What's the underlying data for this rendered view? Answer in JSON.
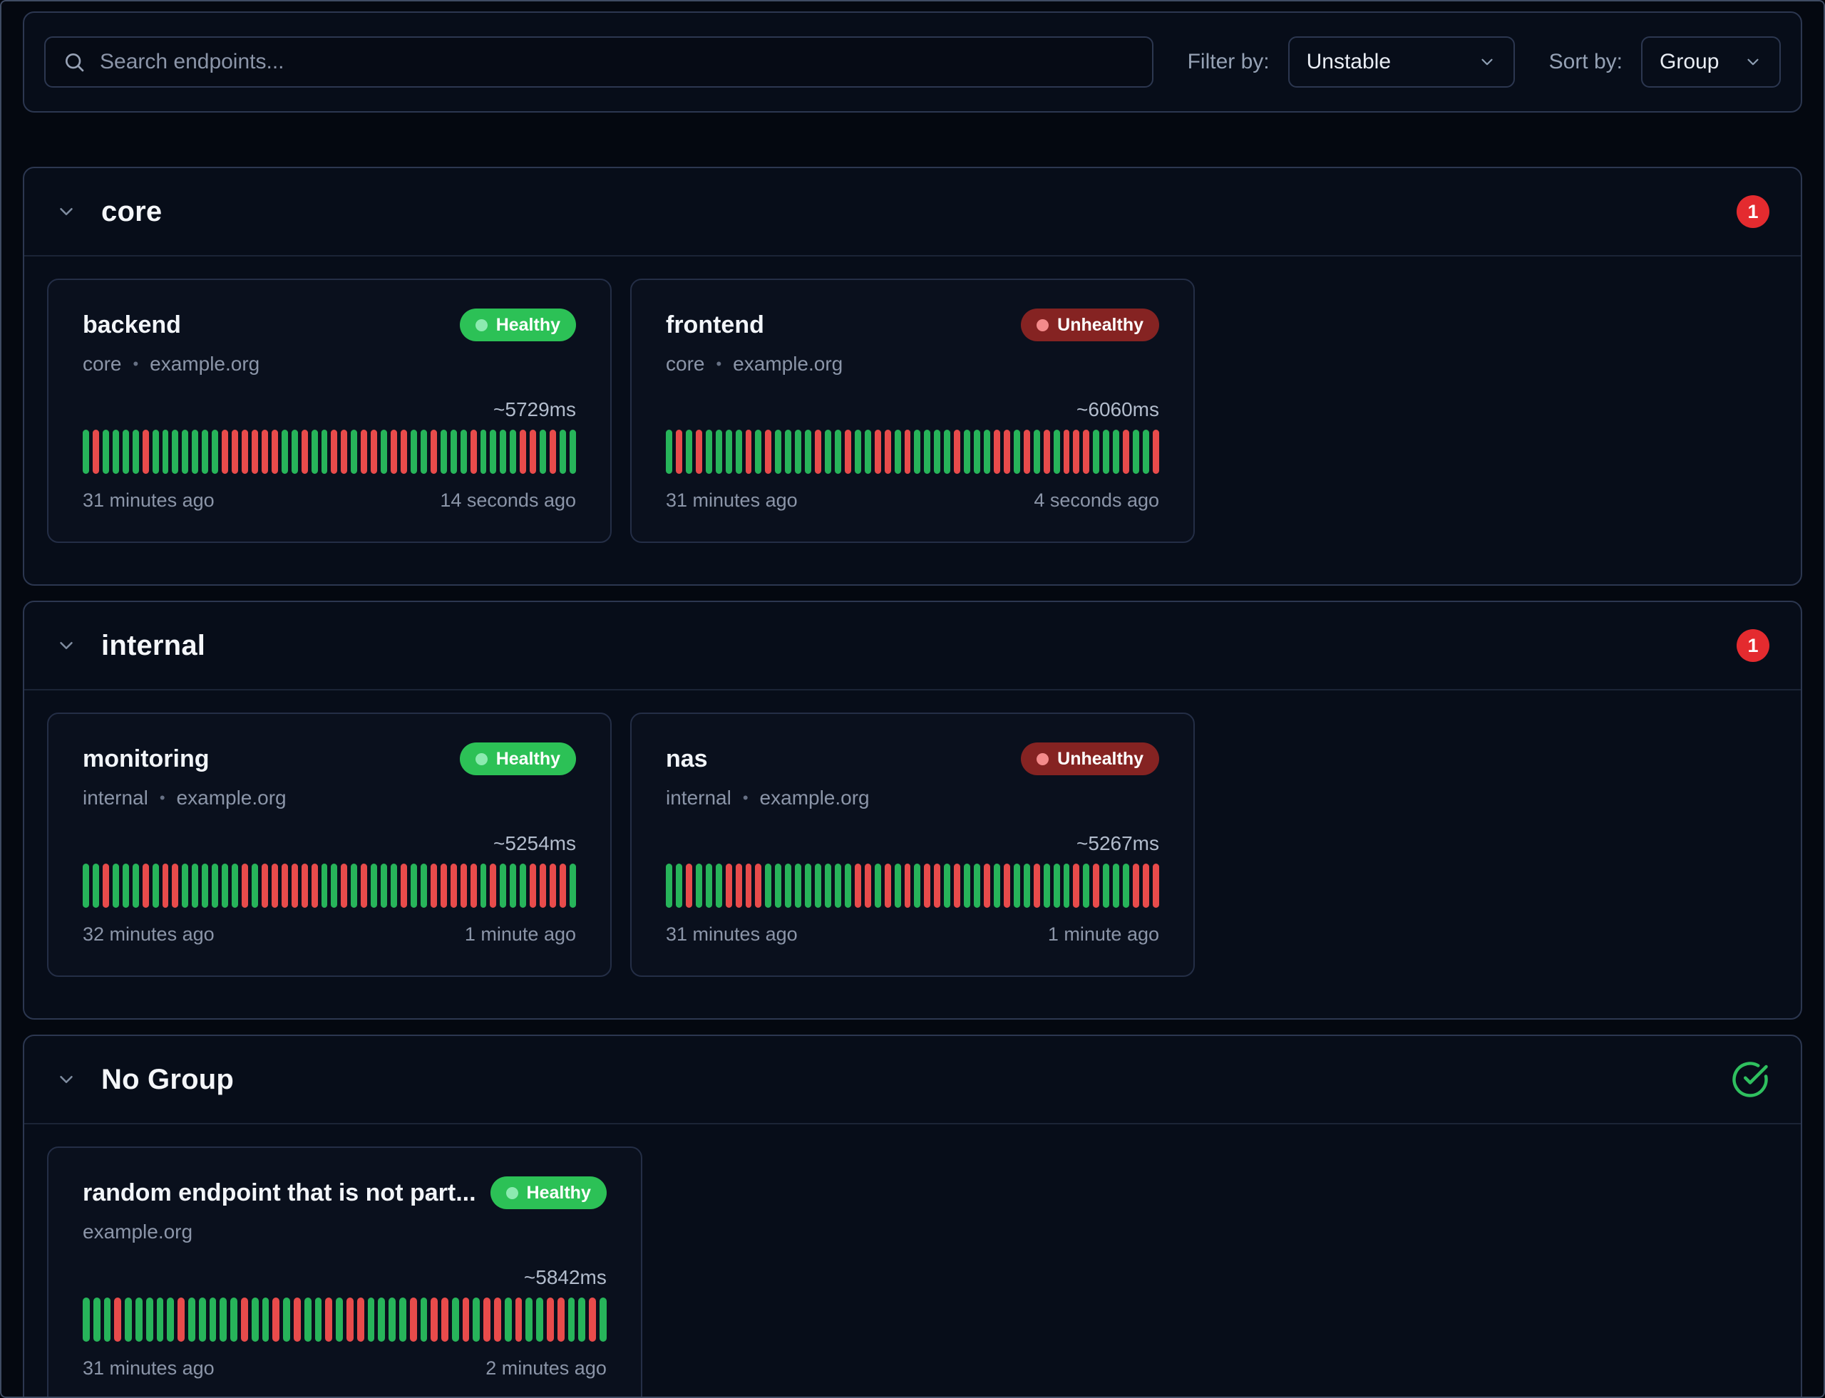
{
  "toolbar": {
    "search_placeholder": "Search endpoints...",
    "filter_label": "Filter by:",
    "filter_value": "Unstable",
    "sort_label": "Sort by:",
    "sort_value": "Group"
  },
  "ui": {
    "meta_separator": "•"
  },
  "colors": {
    "bg": "#040810",
    "panel": "#070d19",
    "card": "#0a101d",
    "input_bg": "#060b15",
    "window_border": "#3f4b63",
    "border_strong": "#2c3750",
    "border": "#242e46",
    "divider": "#1b2436",
    "text": "#f2f5f9",
    "muted": "#8b95a8",
    "ms": "#b2bccc",
    "green": "#27b45a",
    "red": "#e84b4b",
    "pill_green": "#2cc156",
    "pill_green_dot": "#8ceab0",
    "pill_red_bg": "#852322",
    "pill_red_dot": "#f48b8b",
    "count_red": "#e42b2f",
    "check_green": "#2fc05f"
  },
  "groups": [
    {
      "name": "core",
      "badge_count": "1",
      "endpoints": [
        {
          "name": "backend",
          "status": "Healthy",
          "status_type": "healthy",
          "meta": [
            "core",
            "example.org"
          ],
          "response": "~5729ms",
          "start": "31 minutes ago",
          "end": "14 seconds ago",
          "bars": "GRGGGGRGGGGGGGRRRRRRGGRGGRRGRRGRRGGRGGGRGGGGRRGRGG"
        },
        {
          "name": "frontend",
          "status": "Unhealthy",
          "status_type": "unhealthy",
          "meta": [
            "core",
            "example.org"
          ],
          "response": "~6060ms",
          "start": "31 minutes ago",
          "end": "4 seconds ago",
          "bars": "GRGRGGGGRGRGGGGRGGRGGRRGRGGGGRGGGRRGRGRGRRRGGGRGGR"
        }
      ]
    },
    {
      "name": "internal",
      "badge_count": "1",
      "endpoints": [
        {
          "name": "monitoring",
          "status": "Healthy",
          "status_type": "healthy",
          "meta": [
            "internal",
            "example.org"
          ],
          "response": "~5254ms",
          "start": "32 minutes ago",
          "end": "1 minute ago",
          "bars": "GGRGGGRGRRGGGGGGRGRRRRRRGGRGRGGGRGGRRRRRGRGGGRRRRG"
        },
        {
          "name": "nas",
          "status": "Unhealthy",
          "status_type": "unhealthy",
          "meta": [
            "internal",
            "example.org"
          ],
          "response": "~5267ms",
          "start": "31 minutes ago",
          "end": "1 minute ago",
          "bars": "GGRGGGRRRRGGGGGGGGGRRGRGRGRRGRGGRGRGGRGGGRGRGGGRRR"
        }
      ]
    },
    {
      "name": "No Group",
      "badge_count": null,
      "endpoints": [
        {
          "name": "random endpoint that is not part...",
          "status": "Healthy",
          "status_type": "healthy",
          "meta": [
            "example.org"
          ],
          "response": "~5842ms",
          "start": "31 minutes ago",
          "end": "2 minutes ago",
          "bars": "GGGRGGGGGRGGGGGRGGRGRGGRGRRGGGGRGRRGRGRRGRGGRRGGRG"
        }
      ]
    }
  ]
}
